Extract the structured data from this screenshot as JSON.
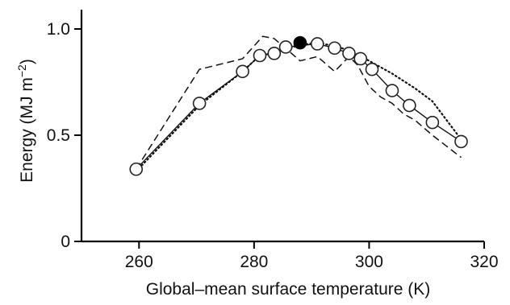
{
  "chart_data": {
    "type": "line",
    "title": "",
    "xlabel": "Global–mean surface temperature (K)",
    "ylabel": {
      "base": "Energy (MJ m",
      "superscript": "−2",
      "close": ")"
    },
    "xlim": [
      250,
      320
    ],
    "ylim": [
      0,
      1.0
    ],
    "xticks": [
      260,
      280,
      300,
      320
    ],
    "xtick_labels": [
      "260",
      "280",
      "300",
      "320"
    ],
    "yticks": [
      0,
      0.5,
      1.0
    ],
    "ytick_labels": [
      "0",
      "0.5",
      "1.0"
    ],
    "grid": false,
    "legend": "none",
    "series": [
      {
        "style": "solid-open-circles",
        "x": [
          259.5,
          270.5,
          278,
          281,
          283.5,
          285.5,
          291,
          294,
          296.5,
          298.5,
          300.5,
          304,
          307,
          311,
          316
        ],
        "y": [
          0.34,
          0.65,
          0.8,
          0.875,
          0.885,
          0.915,
          0.93,
          0.91,
          0.885,
          0.86,
          0.81,
          0.71,
          0.64,
          0.56,
          0.47
        ]
      },
      {
        "style": "dashed",
        "x": [
          259.5,
          270.5,
          278,
          281.5,
          283.5,
          288,
          291,
          294,
          296.5,
          298,
          300,
          302,
          304,
          306,
          308,
          311,
          316
        ],
        "y": [
          0.34,
          0.81,
          0.86,
          0.965,
          0.955,
          0.85,
          0.87,
          0.8,
          0.87,
          0.83,
          0.73,
          0.68,
          0.65,
          0.6,
          0.57,
          0.5,
          0.395
        ]
      },
      {
        "style": "dotted",
        "x": [
          259.5,
          270.5,
          278,
          281,
          284,
          288,
          291,
          294,
          297,
          300,
          304,
          308,
          311,
          316
        ],
        "y": [
          0.33,
          0.64,
          0.8,
          0.875,
          0.89,
          0.925,
          0.935,
          0.92,
          0.895,
          0.85,
          0.79,
          0.72,
          0.66,
          0.48
        ]
      }
    ],
    "highlight_point": {
      "x": 288,
      "y": 0.935
    }
  }
}
